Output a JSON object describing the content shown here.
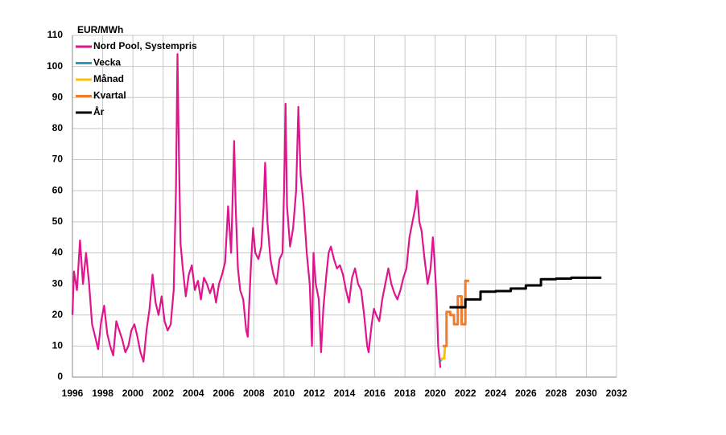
{
  "chart_data": {
    "type": "line",
    "y_label": "EUR/MWh",
    "xlim": [
      1996,
      2032
    ],
    "xticks": [
      1996,
      1998,
      2000,
      2002,
      2004,
      2006,
      2008,
      2010,
      2012,
      2014,
      2016,
      2018,
      2020,
      2022,
      2024,
      2026,
      2028,
      2030,
      2032
    ],
    "ylim": [
      0,
      110
    ],
    "yticks": [
      0,
      10,
      20,
      30,
      40,
      50,
      60,
      70,
      80,
      90,
      100,
      110
    ],
    "grid": true,
    "legend": "top-left",
    "series": [
      {
        "name": "Nord Pool, Systempris",
        "color": "#e0148c",
        "x": [
          1996.0,
          1996.1,
          1996.3,
          1996.5,
          1996.7,
          1996.9,
          1997.1,
          1997.3,
          1997.5,
          1997.7,
          1997.9,
          1998.1,
          1998.3,
          1998.5,
          1998.7,
          1998.9,
          1999.1,
          1999.3,
          1999.5,
          1999.7,
          1999.9,
          2000.1,
          2000.3,
          2000.5,
          2000.7,
          2000.9,
          2001.1,
          2001.3,
          2001.5,
          2001.7,
          2001.9,
          2002.1,
          2002.3,
          2002.5,
          2002.7,
          2002.85,
          2002.95,
          2003.05,
          2003.15,
          2003.3,
          2003.5,
          2003.7,
          2003.9,
          2004.1,
          2004.3,
          2004.5,
          2004.7,
          2004.9,
          2005.1,
          2005.3,
          2005.5,
          2005.7,
          2005.9,
          2006.1,
          2006.3,
          2006.5,
          2006.7,
          2006.8,
          2006.95,
          2007.1,
          2007.3,
          2007.5,
          2007.6,
          2007.8,
          2007.95,
          2008.1,
          2008.3,
          2008.5,
          2008.65,
          2008.75,
          2008.9,
          2009.1,
          2009.3,
          2009.5,
          2009.7,
          2009.9,
          2010.0,
          2010.1,
          2010.2,
          2010.4,
          2010.6,
          2010.8,
          2010.95,
          2011.1,
          2011.3,
          2011.5,
          2011.7,
          2011.85,
          2011.95,
          2012.1,
          2012.3,
          2012.45,
          2012.6,
          2012.8,
          2012.95,
          2013.1,
          2013.3,
          2013.5,
          2013.7,
          2013.9,
          2014.1,
          2014.3,
          2014.5,
          2014.7,
          2014.9,
          2015.1,
          2015.3,
          2015.5,
          2015.6,
          2015.8,
          2015.95,
          2016.1,
          2016.3,
          2016.5,
          2016.7,
          2016.9,
          2017.1,
          2017.3,
          2017.5,
          2017.7,
          2017.9,
          2018.1,
          2018.3,
          2018.5,
          2018.7,
          2018.8,
          2018.95,
          2019.1,
          2019.3,
          2019.5,
          2019.7,
          2019.85,
          2019.95,
          2020.1,
          2020.2,
          2020.3,
          2020.35
        ],
        "values": [
          20,
          34,
          28,
          44,
          30,
          40,
          30,
          17,
          13,
          9,
          18,
          23,
          14,
          10,
          7,
          18,
          15,
          12,
          8,
          10,
          15,
          17,
          13,
          8,
          5,
          15,
          22,
          33,
          24,
          20,
          26,
          18,
          15,
          17,
          28,
          60,
          104,
          70,
          43,
          35,
          26,
          33,
          36,
          28,
          31,
          25,
          32,
          30,
          27,
          30,
          24,
          30,
          33,
          37,
          55,
          40,
          76,
          55,
          35,
          28,
          25,
          15,
          13,
          35,
          48,
          40,
          38,
          42,
          55,
          69,
          50,
          38,
          33,
          30,
          38,
          40,
          60,
          88,
          55,
          42,
          48,
          60,
          87,
          65,
          55,
          40,
          30,
          10,
          40,
          30,
          25,
          8,
          22,
          33,
          40,
          42,
          38,
          35,
          36,
          33,
          28,
          24,
          32,
          35,
          30,
          28,
          20,
          10,
          8,
          17,
          22,
          20,
          18,
          25,
          30,
          35,
          30,
          27,
          25,
          28,
          32,
          35,
          45,
          50,
          55,
          60,
          50,
          47,
          38,
          30,
          35,
          45,
          38,
          25,
          10,
          5,
          3
        ]
      },
      {
        "name": "Vecka",
        "color": "#2a9bbf",
        "x": [
          2020.3,
          2020.45
        ],
        "values": [
          5,
          6
        ]
      },
      {
        "name": "Månad",
        "color": "#ffc000",
        "x": [
          2020.4,
          2020.5,
          2020.6,
          2020.65
        ],
        "values": [
          5.5,
          6,
          6,
          10
        ]
      },
      {
        "name": "Kvartal",
        "color": "#ed7d31",
        "x": [
          2020.5,
          2020.75,
          2020.75,
          2021.0,
          2021.0,
          2021.25,
          2021.25,
          2021.5,
          2021.5,
          2021.75,
          2021.75,
          2022.0,
          2022.0,
          2022.25
        ],
        "values": [
          10,
          10,
          21,
          21,
          20,
          20,
          17,
          17,
          26,
          26,
          17,
          17,
          31,
          31
        ]
      },
      {
        "name": "År",
        "color": "#000000",
        "x": [
          2020.95,
          2022,
          2022,
          2023,
          2023,
          2024,
          2024,
          2025,
          2025,
          2026,
          2026,
          2027,
          2027,
          2028,
          2028,
          2029,
          2029,
          2030,
          2030,
          2031
        ],
        "values": [
          22.5,
          22.5,
          25,
          25,
          27.5,
          27.5,
          27.7,
          27.7,
          28.5,
          28.5,
          29.5,
          29.5,
          31.5,
          31.5,
          31.7,
          31.7,
          32,
          32,
          32,
          32
        ]
      }
    ]
  }
}
